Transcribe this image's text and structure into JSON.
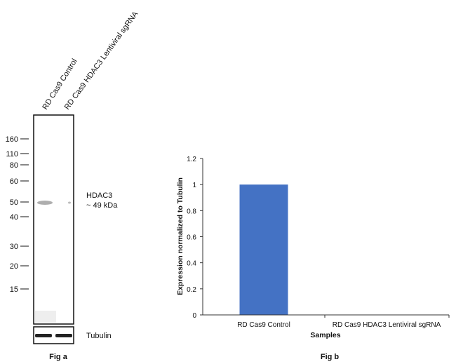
{
  "blot": {
    "lane_labels": [
      "RD Cas9 Control",
      "RD Cas9 HDAC3 Lentiviral sgRNA"
    ],
    "markers": [
      {
        "label": "160",
        "kda": 160
      },
      {
        "label": "110",
        "kda": 110
      },
      {
        "label": "80",
        "kda": 80
      },
      {
        "label": "60",
        "kda": 60
      },
      {
        "label": "50",
        "kda": 50
      },
      {
        "label": "40",
        "kda": 40
      },
      {
        "label": "30",
        "kda": 30
      },
      {
        "label": "20",
        "kda": 20
      },
      {
        "label": "15",
        "kda": 15
      }
    ],
    "band_label": "HDAC3",
    "band_size": "~ 49 kDa",
    "loading_control": "Tubulin",
    "caption": "Fig a"
  },
  "chart_data": {
    "type": "bar",
    "categories": [
      "RD Cas9 Control",
      "RD Cas9 HDAC3 Lentiviral sgRNA"
    ],
    "values": [
      1.0,
      0.0
    ],
    "xlabel": "Samples",
    "ylabel": "Expression normalized to Tubulin",
    "ylim": [
      0,
      1.2
    ],
    "yticks": [
      "0",
      "0.2",
      "0.4",
      "0.6",
      "0.8",
      "1",
      "1.2"
    ],
    "bar_color": "#4472C4",
    "grid": false,
    "caption": "Fig b"
  }
}
